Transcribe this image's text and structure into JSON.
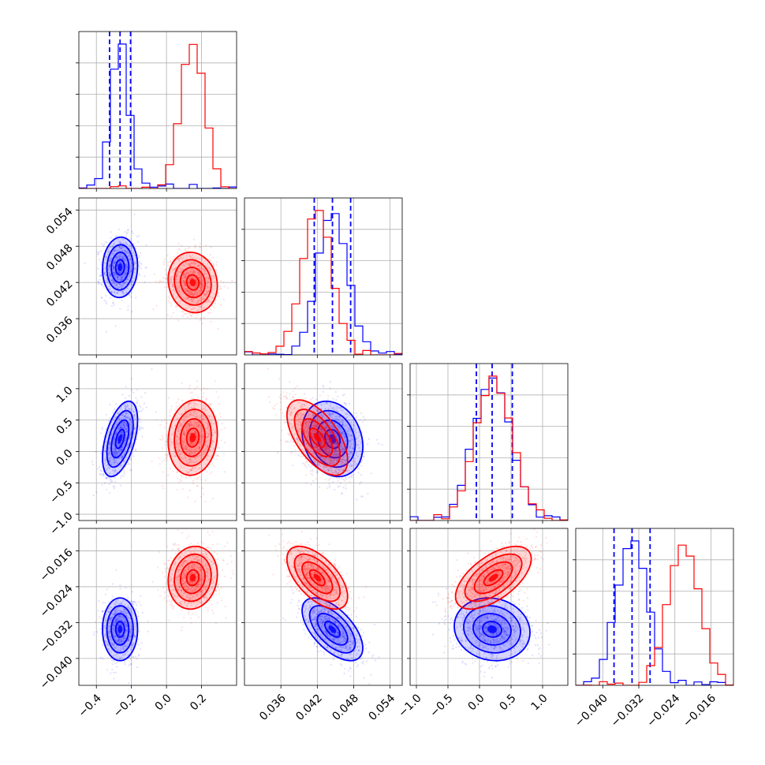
{
  "chart_data": {
    "type": "corner",
    "parameters": 4,
    "colors": {
      "series_a": "#0000ff",
      "series_b": "#ff0000"
    },
    "grid": true,
    "axes": [
      {
        "range": [
          -0.5,
          0.4
        ],
        "ticks": [
          -0.4,
          -0.2,
          0.0,
          0.2
        ],
        "tick_labels": [
          "−0.4",
          "−0.2",
          "0.0",
          "0.2"
        ]
      },
      {
        "range": [
          0.03,
          0.056
        ],
        "ticks": [
          0.036,
          0.042,
          0.048,
          0.054
        ],
        "tick_labels": [
          "0.036",
          "0.042",
          "0.048",
          "0.054"
        ]
      },
      {
        "range": [
          -1.1,
          1.4
        ],
        "ticks": [
          -1.0,
          -0.5,
          0.0,
          0.5,
          1.0
        ],
        "tick_labels": [
          "−1.0",
          "−0.5",
          "0.0",
          "0.5",
          "1.0"
        ]
      },
      {
        "range": [
          -0.046,
          -0.011
        ],
        "ticks": [
          -0.04,
          -0.032,
          -0.024,
          -0.016
        ],
        "tick_labels": [
          "−0.040",
          "−0.032",
          "−0.024",
          "−0.016"
        ]
      }
    ],
    "series": [
      {
        "color": "#0000ff",
        "mean": [
          -0.265,
          0.0445,
          0.2,
          -0.0335
        ],
        "sd": [
          0.05,
          0.0025,
          0.3,
          0.0035
        ],
        "quantile_lines": [
          [
            -0.325,
            -0.265,
            -0.205
          ],
          [
            0.0415,
            0.0445,
            0.0475
          ],
          [
            -0.05,
            0.2,
            0.52
          ],
          [
            -0.0375,
            -0.0335,
            -0.0295
          ]
        ]
      },
      {
        "color": "#ff0000",
        "mean": [
          0.15,
          0.042,
          0.22,
          -0.022
        ],
        "sd": [
          0.07,
          0.0025,
          0.3,
          0.0035
        ],
        "quantile_lines": null
      }
    ],
    "correlations": {
      "series_a": {
        "1-0": 0.05,
        "2-0": 0.5,
        "2-1": -0.2,
        "3-0": 0.0,
        "3-1": -0.6,
        "3-2": -0.1
      },
      "series_b": {
        "1-0": -0.1,
        "2-0": 0.1,
        "2-1": -0.6,
        "3-0": 0.1,
        "3-1": -0.6,
        "3-2": 0.6
      }
    },
    "contour_levels_sigma": [
      0.5,
      1.0,
      1.5,
      2.0
    ]
  }
}
